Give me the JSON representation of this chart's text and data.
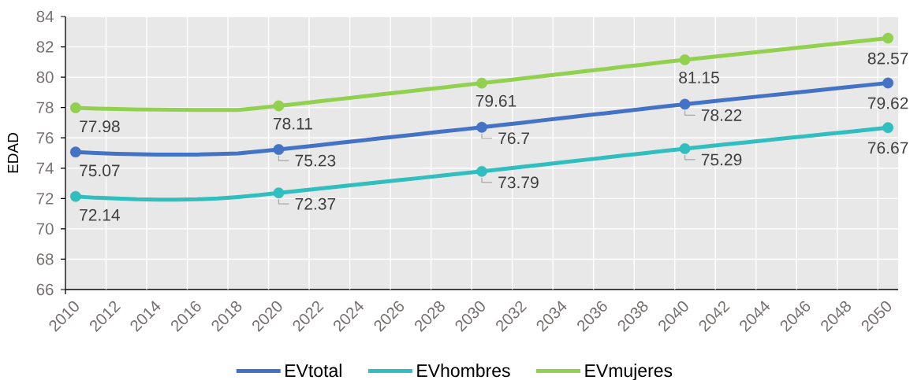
{
  "chart_data": {
    "type": "line",
    "ylabel": "EDAD",
    "categories": [
      "2010",
      null,
      "2012",
      null,
      "2014",
      null,
      "2016",
      null,
      "2018",
      null,
      "2020",
      null,
      "2022",
      null,
      "2024",
      null,
      "2026",
      null,
      "2028",
      null,
      "2030",
      null,
      "2032",
      null,
      "2034",
      null,
      "2036",
      null,
      "2038",
      null,
      "2040",
      null,
      "2042",
      null,
      "2044",
      null,
      "2046",
      null,
      "2048",
      null,
      "2050"
    ],
    "ylim": [
      66,
      84
    ],
    "yticks": [
      66,
      68,
      70,
      72,
      74,
      76,
      78,
      80,
      82,
      84
    ],
    "grid": true,
    "legend": "bottom",
    "series": [
      {
        "name": "EVtotal",
        "color": "#4472c4",
        "values": [
          75.07,
          75.0,
          74.95,
          74.92,
          74.9,
          74.9,
          74.9,
          74.93,
          74.97,
          75.1,
          75.23,
          75.38,
          75.52,
          75.67,
          75.82,
          75.97,
          76.11,
          76.26,
          76.41,
          76.55,
          76.7,
          76.85,
          77.0,
          77.16,
          77.31,
          77.46,
          77.61,
          77.76,
          77.92,
          78.07,
          78.22,
          78.36,
          78.5,
          78.64,
          78.78,
          78.92,
          79.06,
          79.2,
          79.34,
          79.48,
          79.62
        ]
      },
      {
        "name": "EVhombres",
        "color": "#30bebe",
        "values": [
          72.14,
          72.05,
          72.0,
          71.95,
          71.93,
          71.93,
          71.95,
          72.0,
          72.1,
          72.22,
          72.37,
          72.51,
          72.65,
          72.8,
          72.94,
          73.08,
          73.22,
          73.36,
          73.51,
          73.65,
          73.79,
          73.94,
          74.09,
          74.24,
          74.39,
          74.54,
          74.69,
          74.84,
          74.99,
          75.14,
          75.29,
          75.43,
          75.57,
          75.7,
          75.84,
          75.98,
          76.12,
          76.26,
          76.39,
          76.53,
          76.67
        ]
      },
      {
        "name": "EVmujeres",
        "color": "#92d050",
        "values": [
          77.98,
          77.93,
          77.9,
          77.88,
          77.86,
          77.85,
          77.84,
          77.84,
          77.84,
          77.97,
          78.11,
          78.26,
          78.41,
          78.56,
          78.71,
          78.86,
          79.01,
          79.16,
          79.31,
          79.46,
          79.61,
          79.76,
          79.92,
          80.07,
          80.23,
          80.38,
          80.53,
          80.69,
          80.84,
          81.0,
          81.15,
          81.29,
          81.43,
          81.58,
          81.72,
          81.86,
          82.0,
          82.14,
          82.29,
          82.43,
          82.57
        ]
      },
      {
        "type": "scatter",
        "marker": "circle",
        "color": "#4472c4",
        "values": [
          75.07,
          null,
          null,
          null,
          null,
          null,
          null,
          null,
          null,
          null,
          75.23,
          null,
          null,
          null,
          null,
          null,
          null,
          null,
          null,
          null,
          76.7,
          null,
          null,
          null,
          null,
          null,
          null,
          null,
          null,
          null,
          78.22,
          null,
          null,
          null,
          null,
          null,
          null,
          null,
          null,
          null,
          79.62
        ],
        "value_labels": [
          "75.07",
          null,
          null,
          null,
          null,
          null,
          null,
          null,
          null,
          null,
          "75.23",
          null,
          null,
          null,
          null,
          null,
          null,
          null,
          null,
          null,
          "76.7",
          null,
          null,
          null,
          null,
          null,
          null,
          null,
          null,
          null,
          "78.22",
          null,
          null,
          null,
          null,
          null,
          null,
          null,
          null,
          null,
          "79.62"
        ]
      },
      {
        "type": "scatter",
        "marker": "circle",
        "color": "#30bebe",
        "values": [
          72.14,
          null,
          null,
          null,
          null,
          null,
          null,
          null,
          null,
          null,
          72.37,
          null,
          null,
          null,
          null,
          null,
          null,
          null,
          null,
          null,
          73.79,
          null,
          null,
          null,
          null,
          null,
          null,
          null,
          null,
          null,
          75.29,
          null,
          null,
          null,
          null,
          null,
          null,
          null,
          null,
          null,
          76.67
        ],
        "value_labels": [
          "72.14",
          null,
          null,
          null,
          null,
          null,
          null,
          null,
          null,
          null,
          "72.37",
          null,
          null,
          null,
          null,
          null,
          null,
          null,
          null,
          null,
          "73.79",
          null,
          null,
          null,
          null,
          null,
          null,
          null,
          null,
          null,
          "75.29",
          null,
          null,
          null,
          null,
          null,
          null,
          null,
          null,
          null,
          "76.67"
        ]
      },
      {
        "type": "scatter",
        "marker": "circle",
        "color": "#92d050",
        "values": [
          77.98,
          null,
          null,
          null,
          null,
          null,
          null,
          null,
          null,
          null,
          78.11,
          null,
          null,
          null,
          null,
          null,
          null,
          null,
          null,
          null,
          79.61,
          null,
          null,
          null,
          null,
          null,
          null,
          null,
          null,
          null,
          81.15,
          null,
          null,
          null,
          null,
          null,
          null,
          null,
          null,
          null,
          82.57
        ],
        "value_labels": [
          "77.98",
          null,
          null,
          null,
          null,
          null,
          null,
          null,
          null,
          null,
          "78.11",
          null,
          null,
          null,
          null,
          null,
          null,
          null,
          null,
          null,
          "79.61",
          null,
          null,
          null,
          null,
          null,
          null,
          null,
          null,
          null,
          "81.15",
          null,
          null,
          null,
          null,
          null,
          null,
          null,
          null,
          null,
          "82.57"
        ]
      }
    ]
  }
}
